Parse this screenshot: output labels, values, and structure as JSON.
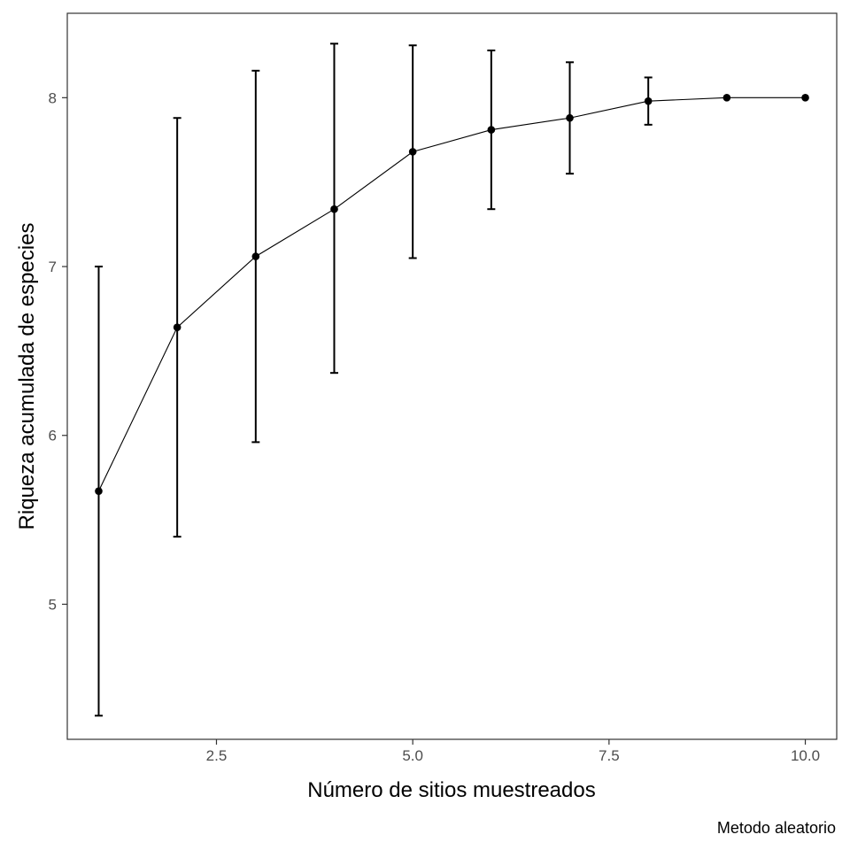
{
  "chart_data": {
    "type": "line",
    "title": "",
    "xlabel": "Número de sitios muestreados",
    "ylabel": "Riqueza acumulada de especies",
    "caption": "Metodo aleatorio",
    "xlim": [
      0.6,
      10.4
    ],
    "ylim": [
      4.2,
      8.5
    ],
    "x_ticks": [
      2.5,
      5.0,
      7.5,
      10.0
    ],
    "x_tick_labels": [
      "2.5",
      "5.0",
      "7.5",
      "10.0"
    ],
    "y_ticks": [
      5,
      6,
      7,
      8
    ],
    "y_tick_labels": [
      "5",
      "6",
      "7",
      "8"
    ],
    "grid": false,
    "series": [
      {
        "x": [
          1,
          2,
          3,
          4,
          5,
          6,
          7,
          8,
          9,
          10
        ],
        "y": [
          5.67,
          6.64,
          7.06,
          7.34,
          7.68,
          7.81,
          7.88,
          7.98,
          8.0,
          8.0
        ],
        "ymin": [
          4.34,
          5.4,
          5.96,
          6.37,
          7.05,
          7.34,
          7.55,
          7.84,
          8.0,
          8.0
        ],
        "ymax": [
          7.0,
          7.88,
          8.16,
          8.32,
          8.31,
          8.28,
          8.21,
          8.12,
          8.0,
          8.0
        ],
        "color": "#000000"
      }
    ]
  }
}
